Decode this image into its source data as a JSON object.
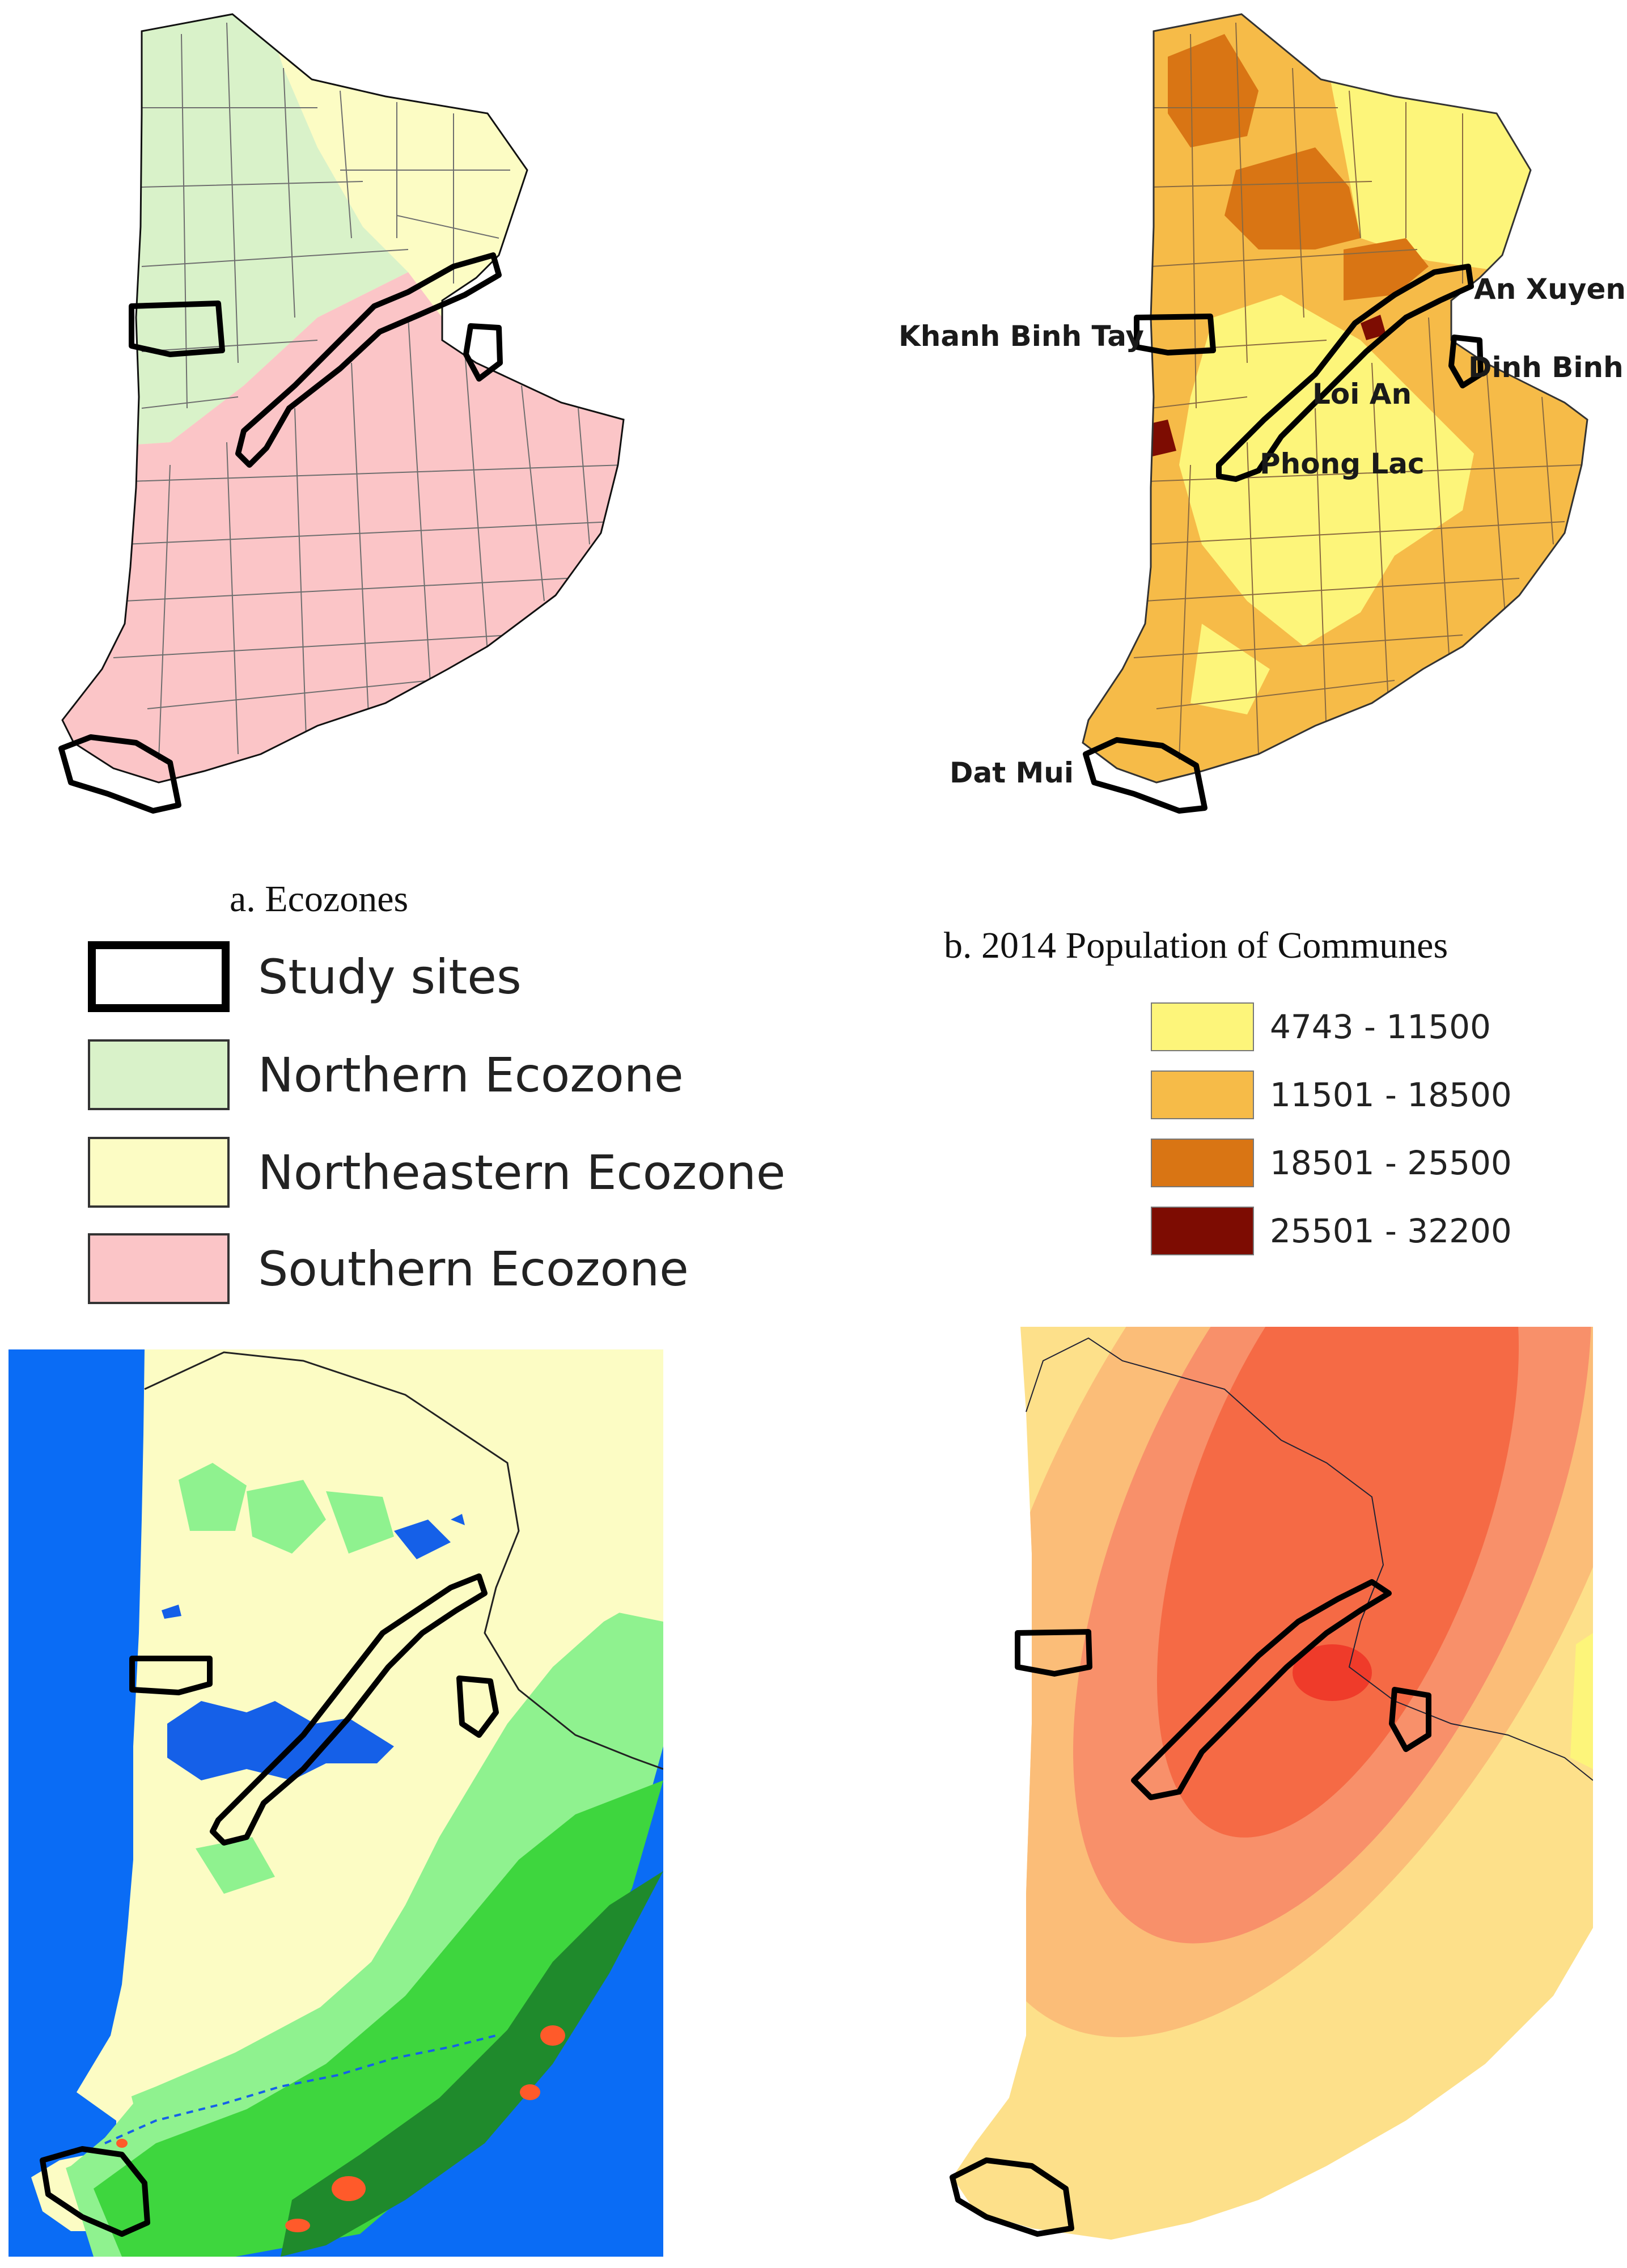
{
  "panels": {
    "a": {
      "caption": "a. Ecozones",
      "legend": [
        {
          "label": "Study sites",
          "color": "#ffffff",
          "kind": "outline"
        },
        {
          "label": "Northern Ecozone",
          "color": "#d9f2c9"
        },
        {
          "label": "Northeastern Ecozone",
          "color": "#fcfcc4"
        },
        {
          "label": "Southern Ecozone",
          "color": "#fbc5c7"
        }
      ]
    },
    "b": {
      "caption": "b. 2014 Population of Communes",
      "legend": [
        {
          "label": "4743 - 11500",
          "color": "#fdf57a"
        },
        {
          "label": "11501 - 18500",
          "color": "#f6bb48"
        },
        {
          "label": "18501 - 25500",
          "color": "#d97514"
        },
        {
          "label": "25501 - 32200",
          "color": "#7d0c02"
        }
      ],
      "place_labels": [
        "An Xuyen",
        "Khanh Binh Tay",
        "Dinh Binh",
        "Loi An",
        "Phong Lac",
        "Dat Mui"
      ]
    },
    "c": {
      "colors": {
        "sea": "#0a6cf5",
        "land": "#fcfcc4",
        "green_light": "#8ff28f",
        "green_mid": "#3ed63e",
        "green_dark": "#1f8a2c",
        "hotspot": "#ff5a2a",
        "water": "#1560e8"
      }
    },
    "d": {
      "colors": {
        "outer": "#fde08a",
        "ring1": "#fbbd78",
        "ring2": "#f8906a",
        "ring3": "#f56a45",
        "core": "#ef3b2a"
      }
    }
  }
}
